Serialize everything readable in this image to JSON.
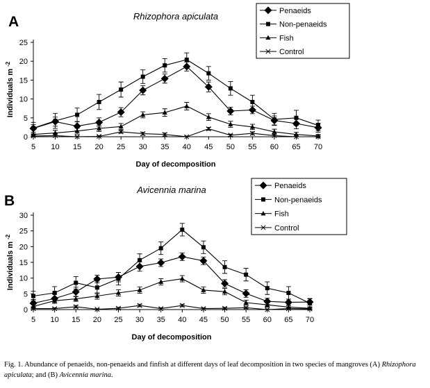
{
  "chart_data": [
    {
      "type": "line",
      "panel_label": "A",
      "title": "Rhizophora apiculata",
      "xlabel": "Day of decomposition",
      "ylabel": "Individuals m",
      "ylabel_sup": "-2",
      "x": [
        5,
        10,
        15,
        20,
        25,
        30,
        35,
        40,
        45,
        50,
        55,
        60,
        65,
        70
      ],
      "xlim": [
        5,
        70
      ],
      "ylim": [
        0,
        25
      ],
      "yticks": [
        0,
        5,
        10,
        15,
        20,
        25
      ],
      "legend_position": "top-right",
      "error_bars": true,
      "series": [
        {
          "name": "Penaeids",
          "marker": "diamond",
          "values": [
            2.2,
            4.0,
            2.8,
            3.8,
            6.5,
            12.3,
            15.4,
            18.6,
            13.2,
            6.8,
            7.1,
            4.3,
            3.5,
            2.4
          ],
          "errors": [
            1.0,
            1.2,
            1.2,
            1.2,
            1.2,
            1.2,
            1.2,
            1.2,
            1.3,
            1.0,
            1.0,
            1.2,
            1.4,
            1.2
          ]
        },
        {
          "name": "Non-penaeids",
          "marker": "square",
          "values": [
            2.3,
            4.2,
            5.8,
            9.2,
            12.5,
            15.9,
            18.9,
            20.4,
            16.8,
            12.8,
            9.2,
            4.6,
            5.0,
            3.0
          ],
          "errors": [
            1.5,
            2.0,
            1.8,
            2.0,
            2.0,
            1.8,
            1.8,
            1.8,
            1.8,
            1.8,
            1.8,
            1.6,
            2.0,
            1.4
          ]
        },
        {
          "name": "Fish",
          "marker": "triangle",
          "values": [
            0.6,
            1.0,
            1.5,
            2.2,
            2.7,
            5.8,
            6.4,
            8.1,
            5.2,
            3.3,
            2.6,
            1.3,
            0.6,
            0.2
          ],
          "errors": [
            0.6,
            0.7,
            0.8,
            0.8,
            0.8,
            0.8,
            1.0,
            1.0,
            0.9,
            0.8,
            0.7,
            0.7,
            0.6,
            0.4
          ]
        },
        {
          "name": "Control",
          "marker": "x",
          "values": [
            0.2,
            0.3,
            0.0,
            0.1,
            1.3,
            0.8,
            0.6,
            0.0,
            2.1,
            0.4,
            0.9,
            0.3,
            0.0,
            0.0
          ],
          "errors": [
            0.3,
            0.3,
            0.2,
            0.2,
            0.4,
            0.4,
            0.4,
            0.2,
            0.4,
            0.3,
            0.4,
            0.3,
            0.2,
            0.2
          ]
        }
      ]
    },
    {
      "type": "line",
      "panel_label": "B",
      "title": "Avicennia marina",
      "xlabel": "Day of decomposition",
      "ylabel": "Individuals m",
      "ylabel_sup": "-2",
      "x": [
        5,
        10,
        15,
        20,
        25,
        30,
        35,
        40,
        45,
        50,
        55,
        60,
        65,
        70
      ],
      "xlim": [
        5,
        70
      ],
      "ylim": [
        0,
        30
      ],
      "yticks": [
        0,
        5,
        10,
        15,
        20,
        25,
        30
      ],
      "legend_position": "top-right",
      "error_bars": true,
      "series": [
        {
          "name": "Penaeids",
          "marker": "diamond",
          "values": [
            2.0,
            3.5,
            5.6,
            9.7,
            10.3,
            13.7,
            14.9,
            16.8,
            15.5,
            8.3,
            5.1,
            2.6,
            2.3,
            2.4
          ],
          "errors": [
            1.2,
            1.5,
            1.5,
            1.2,
            1.5,
            1.5,
            1.2,
            1.2,
            1.2,
            1.2,
            1.2,
            1.0,
            1.0,
            1.0
          ]
        },
        {
          "name": "Non-penaeids",
          "marker": "square",
          "values": [
            4.3,
            5.3,
            8.5,
            7.0,
            9.8,
            15.7,
            19.5,
            25.4,
            19.8,
            13.5,
            11.1,
            6.8,
            5.3,
            2.0
          ],
          "errors": [
            1.5,
            2.0,
            2.0,
            2.0,
            2.0,
            2.0,
            2.0,
            2.0,
            2.0,
            2.0,
            2.0,
            2.0,
            2.0,
            1.5
          ]
        },
        {
          "name": "Fish",
          "marker": "triangle",
          "values": [
            1.0,
            2.8,
            3.4,
            4.3,
            5.3,
            6.2,
            8.8,
            9.8,
            6.2,
            5.7,
            2.2,
            1.5,
            0.8,
            0.4
          ],
          "errors": [
            0.7,
            0.8,
            0.8,
            1.0,
            1.0,
            1.0,
            1.0,
            1.0,
            1.0,
            1.0,
            0.8,
            0.7,
            0.6,
            0.5
          ]
        },
        {
          "name": "Control",
          "marker": "x",
          "values": [
            0.3,
            0.3,
            0.9,
            0.1,
            0.4,
            1.3,
            0.3,
            1.3,
            0.3,
            0.4,
            0.6,
            0.0,
            0.3,
            0.2
          ],
          "errors": [
            0.3,
            0.3,
            0.4,
            0.2,
            0.3,
            0.4,
            0.3,
            0.4,
            0.3,
            0.3,
            0.3,
            0.2,
            0.2,
            0.2
          ]
        }
      ]
    }
  ],
  "caption": {
    "prefix": "Fig. 1. Abundance of penaeids, non-penaeids and finfish at different days of leaf decomposition in two species of mangroves (A) ",
    "species_a": "Rhizophora apiculata",
    "middle": "; and (B) ",
    "species_b": "Avicennia marina",
    "suffix": "."
  }
}
